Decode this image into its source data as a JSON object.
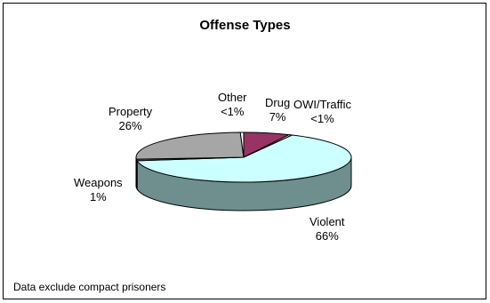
{
  "chart_data": {
    "type": "pie",
    "title": "Offense Types",
    "slices": [
      {
        "name": "Drug",
        "label": "7%",
        "value": 7,
        "color": "#993366"
      },
      {
        "name": "OWI/Traffic",
        "label": "<1%",
        "value": 0.5,
        "color": "#ffffcc"
      },
      {
        "name": "Violent",
        "label": "66%",
        "value": 66,
        "color": "#ccffff"
      },
      {
        "name": "Weapons",
        "label": "1%",
        "value": 1,
        "color": "#666699"
      },
      {
        "name": "Property",
        "label": "26%",
        "value": 26,
        "color": "#a6a6a6"
      },
      {
        "name": "Other",
        "label": "<1%",
        "value": 0.5,
        "color": "#ffffff"
      }
    ],
    "note": "Data exclude compact prisoners"
  }
}
